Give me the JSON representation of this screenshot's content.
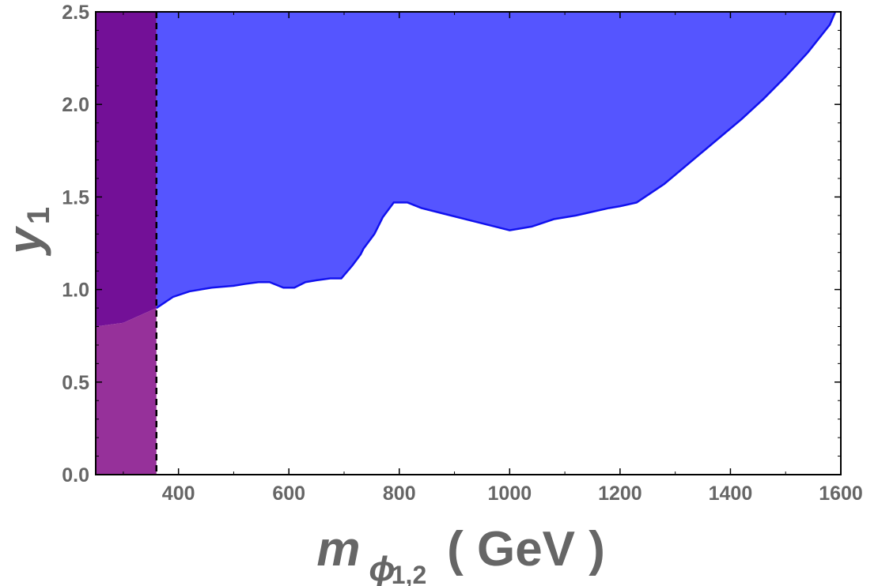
{
  "chart_data": {
    "type": "area",
    "title": "",
    "xlabel": {
      "main": "m",
      "sub1": "ϕ",
      "sub2": "1,2",
      "suffix": "( GeV )"
    },
    "ylabel": {
      "main": "y",
      "sub": "1"
    },
    "xlim": [
      250,
      1600
    ],
    "ylim": [
      0,
      2.5
    ],
    "xticks": [
      400,
      600,
      800,
      1000,
      1200,
      1400,
      1600
    ],
    "yticks": [
      "0.0",
      "0.5",
      "1.0",
      "1.5",
      "2.0",
      "2.5"
    ],
    "grid": false,
    "colors": {
      "excluded_fill": "#5555ff",
      "excluded_edge": "#1111ee",
      "band_upper": "#731097",
      "band_lower": "#96319a",
      "dashed_line": "#000000",
      "axis_text": "#666666"
    },
    "vertical_line_x": 360,
    "purple_band": {
      "x_range": [
        250,
        360
      ],
      "boundary": [
        [
          250,
          0.8
        ],
        [
          300,
          0.82
        ],
        [
          360,
          0.9
        ]
      ]
    },
    "boundary_curve": [
      [
        360,
        0.9
      ],
      [
        390,
        0.96
      ],
      [
        420,
        0.99
      ],
      [
        460,
        1.01
      ],
      [
        500,
        1.02
      ],
      [
        520,
        1.03
      ],
      [
        545,
        1.04
      ],
      [
        565,
        1.04
      ],
      [
        590,
        1.01
      ],
      [
        610,
        1.01
      ],
      [
        630,
        1.04
      ],
      [
        650,
        1.05
      ],
      [
        675,
        1.06
      ],
      [
        695,
        1.06
      ],
      [
        715,
        1.13
      ],
      [
        730,
        1.19
      ],
      [
        735,
        1.22
      ],
      [
        755,
        1.3
      ],
      [
        770,
        1.39
      ],
      [
        790,
        1.47
      ],
      [
        815,
        1.47
      ],
      [
        840,
        1.44
      ],
      [
        880,
        1.41
      ],
      [
        920,
        1.38
      ],
      [
        960,
        1.35
      ],
      [
        1000,
        1.32
      ],
      [
        1040,
        1.34
      ],
      [
        1080,
        1.38
      ],
      [
        1120,
        1.4
      ],
      [
        1150,
        1.42
      ],
      [
        1180,
        1.44
      ],
      [
        1200,
        1.45
      ],
      [
        1230,
        1.47
      ],
      [
        1250,
        1.51
      ],
      [
        1280,
        1.57
      ],
      [
        1300,
        1.62
      ],
      [
        1340,
        1.72
      ],
      [
        1380,
        1.82
      ],
      [
        1420,
        1.92
      ],
      [
        1460,
        2.03
      ],
      [
        1500,
        2.15
      ],
      [
        1540,
        2.28
      ],
      [
        1580,
        2.43
      ],
      [
        1590,
        2.5
      ]
    ]
  }
}
